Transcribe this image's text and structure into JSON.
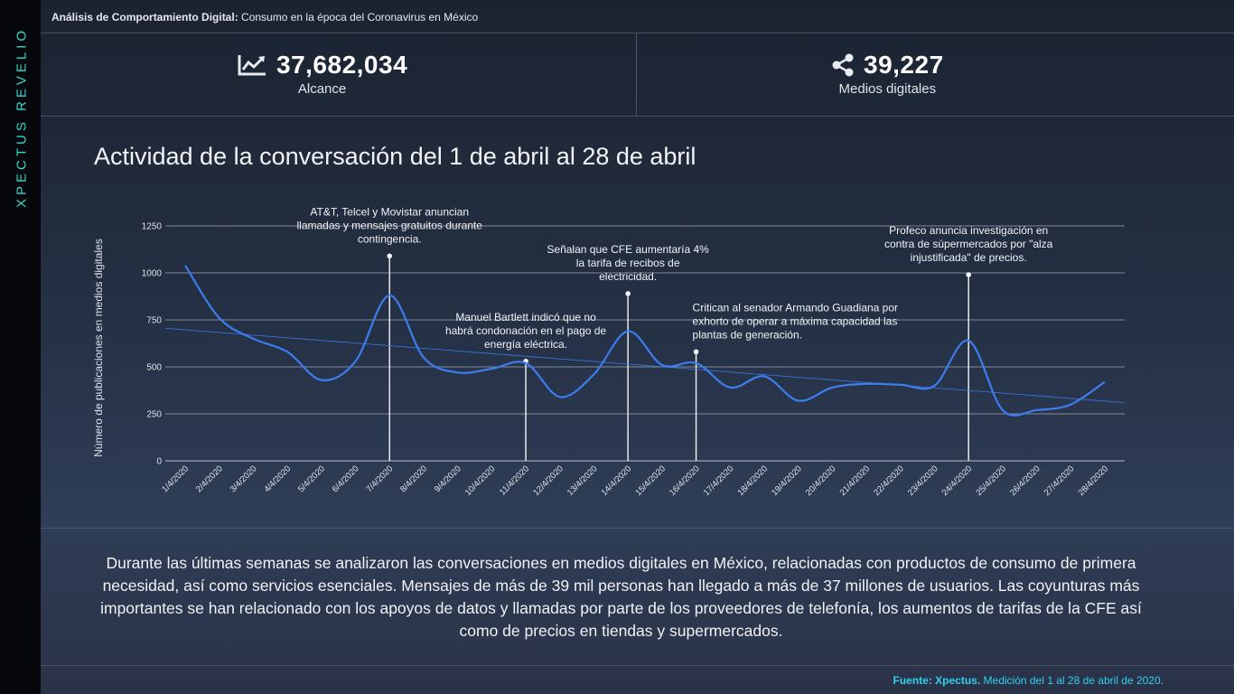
{
  "brand": "XPECTUS REVELIO",
  "header": {
    "bold": "Análisis de Comportamiento Digital:",
    "rest": " Consumo en la época del Coronavirus en México"
  },
  "kpis": [
    {
      "icon": "line-chart-icon",
      "value": "37,682,034",
      "label": "Alcance"
    },
    {
      "icon": "share-icon",
      "value": "39,227",
      "label": "Medios digitales"
    }
  ],
  "chart_title": "Actividad de la conversación del 1 de abril al 28 de abril",
  "chart_data": {
    "type": "line",
    "ylabel": "Número de publicaciones en medios digitales",
    "ylim": [
      0,
      1250
    ],
    "yticks": [
      0,
      250,
      500,
      750,
      1000,
      1250
    ],
    "grid": true,
    "categories": [
      "1/4/2020",
      "2/4/2020",
      "3/4/2020",
      "4/4/2020",
      "5/4/2020",
      "6/4/2020",
      "7/4/2020",
      "8/4/2020",
      "9/4/2020",
      "10/4/2020",
      "11/4/2020",
      "12/4/2020",
      "13/4/2020",
      "14/4/2020",
      "15/4/2020",
      "16/4/2020",
      "17/4/2020",
      "18/4/2020",
      "19/4/2020",
      "20/4/2020",
      "21/4/2020",
      "22/4/2020",
      "23/4/2020",
      "24/4/2020",
      "25/4/2020",
      "26/4/2020",
      "27/4/2020",
      "28/4/2020"
    ],
    "series": [
      {
        "values": [
          1040,
          760,
          650,
          580,
          430,
          530,
          880,
          550,
          470,
          490,
          520,
          340,
          460,
          690,
          510,
          520,
          390,
          450,
          320,
          390,
          410,
          405,
          400,
          640,
          270,
          270,
          300,
          420
        ]
      }
    ],
    "trendline": [
      705,
      310
    ],
    "line_color": "#3d7df0",
    "annotations": [
      {
        "index": 6,
        "y": 1090,
        "text": "AT&T, Telcel y Movistar anuncian llamadas y mensajes gratuitos durante contingencia."
      },
      {
        "index": 10,
        "y": 530,
        "text": "Manuel Bartlett indicó que no habrá condonación en el pago de energía eléctrica."
      },
      {
        "index": 13,
        "y": 890,
        "text": "Señalan que CFE aumentaría 4% la tarifa de recibos de electricidad."
      },
      {
        "index": 15,
        "y": 580,
        "text": "Critican al senador Armando Guadiana por exhorto de operar a máxima capacidad las plantas de generación."
      },
      {
        "index": 23,
        "y": 990,
        "text": "Profeco anuncia investigación en contra de súpermercados por \"alza injustificada\" de precios."
      }
    ]
  },
  "description": "Durante las últimas semanas  se analizaron las conversaciones en medios digitales en México, relacionadas con productos de consumo de primera necesidad, así como servicios esenciales. Mensajes de más de 39 mil personas han llegado a  más de 37 millones de usuarios. Las coyunturas más importantes se han relacionado con los apoyos de datos y llamadas por parte de los proveedores de telefonía, los aumentos de tarifas de la CFE así como de precios en tiendas y supermercados.",
  "source": {
    "bold": "Fuente: Xpectus.",
    "rest": " Medición del 1 al 28 de abril de 2020."
  }
}
